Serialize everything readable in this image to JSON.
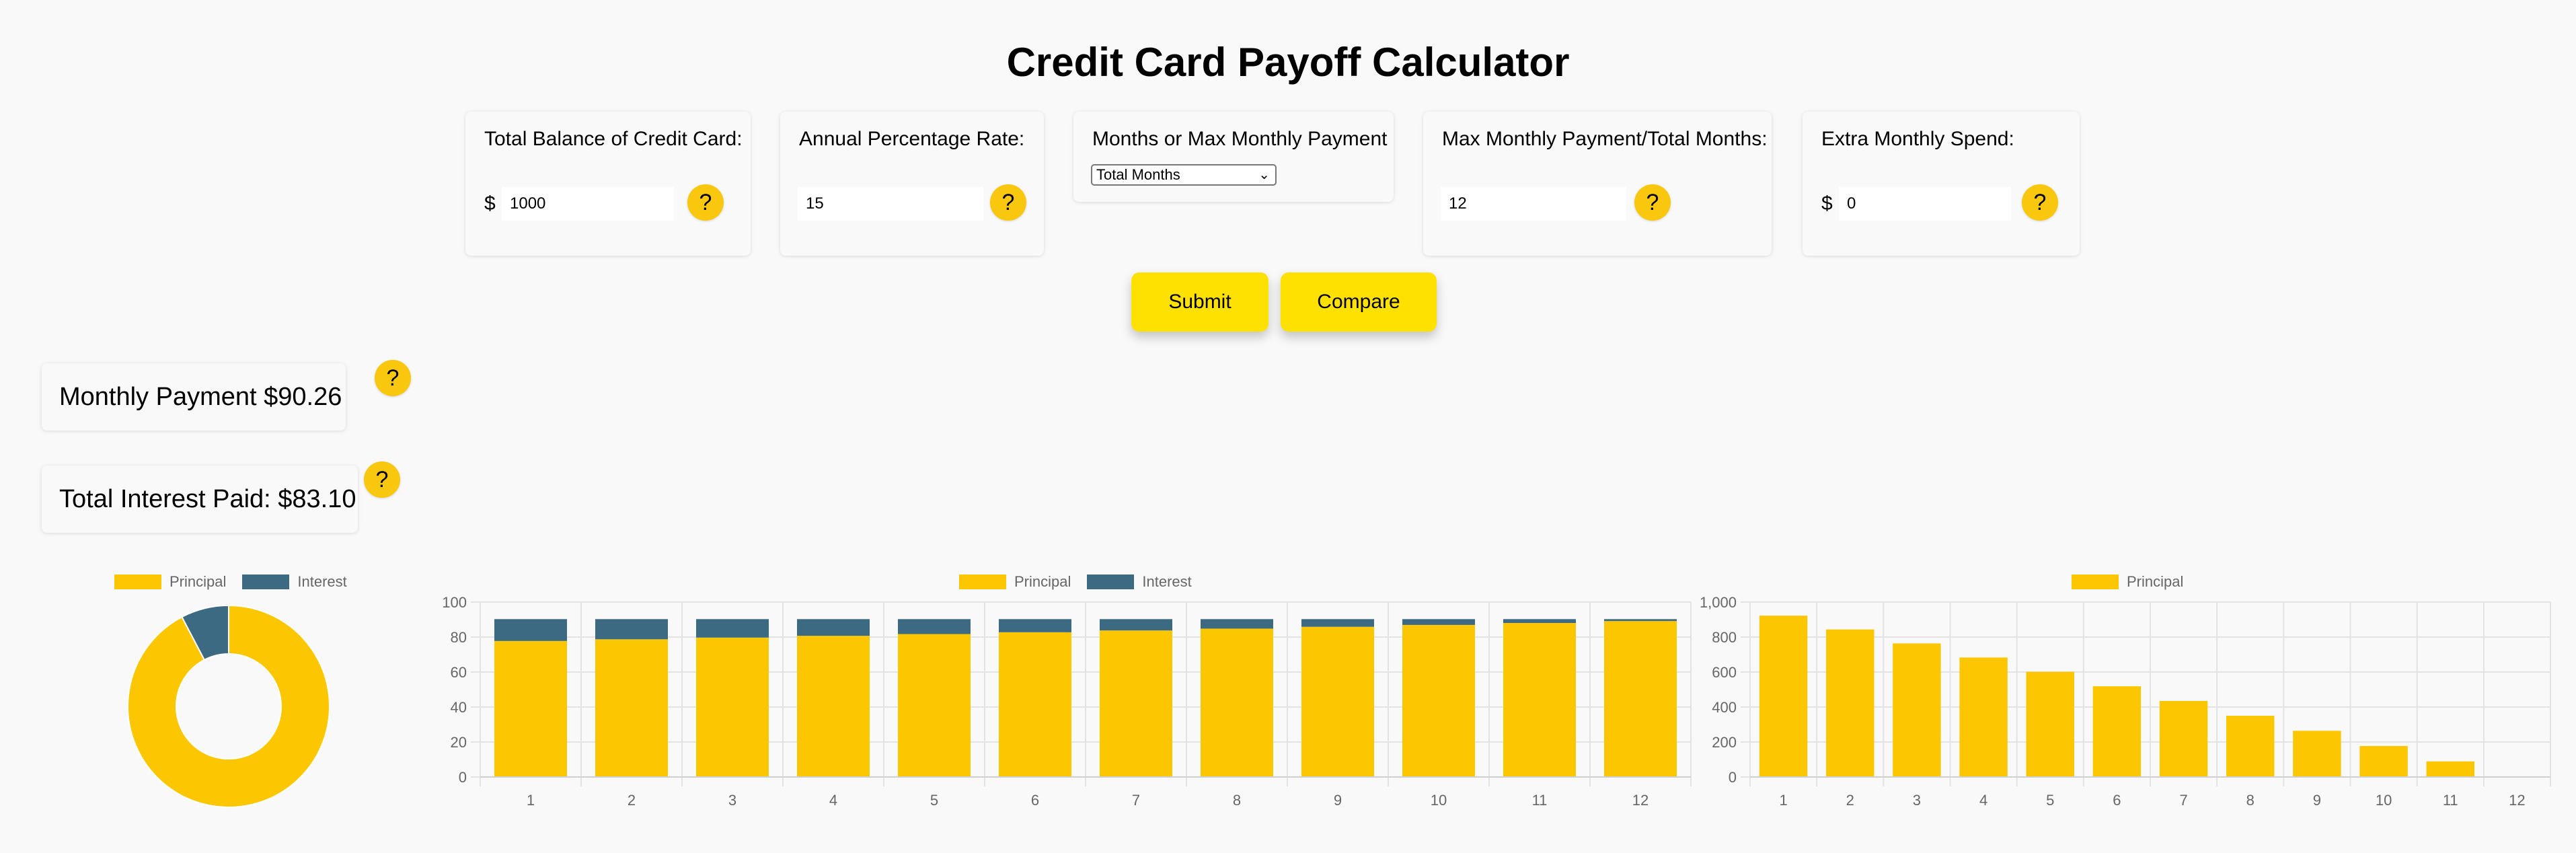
{
  "title": "Credit Card Payoff Calculator",
  "colors": {
    "principal": "#fcc600",
    "interest": "#3b6a82",
    "help": "#f9c80e",
    "button": "#ffe100"
  },
  "fields": {
    "balance": {
      "label": "Total Balance of Credit Card:",
      "prefix": "$",
      "value": "1000",
      "help": "?"
    },
    "apr": {
      "label": "Annual Percentage Rate:",
      "value": "15",
      "help": "?"
    },
    "mode": {
      "label": "Months or Max Monthly Payment",
      "selected": "Total Months"
    },
    "payment_months": {
      "label": "Max Monthly Payment/Total Months:",
      "value": "12",
      "help": "?"
    },
    "extra": {
      "label": "Extra Monthly Spend:",
      "prefix": "$",
      "value": "0",
      "help": "?"
    }
  },
  "buttons": {
    "submit": "Submit",
    "compare": "Compare"
  },
  "results": {
    "monthly_payment": "Monthly Payment $90.26",
    "total_interest": "Total Interest Paid: $83.10",
    "help": "?"
  },
  "chart_data": [
    {
      "type": "pie",
      "variant": "doughnut",
      "legend": [
        "Principal",
        "Interest"
      ],
      "labels": [
        "Principal",
        "Interest"
      ],
      "values": [
        1000,
        83.1
      ],
      "legend_position": "top"
    },
    {
      "type": "bar",
      "stacked": true,
      "categories": [
        "1",
        "2",
        "3",
        "4",
        "5",
        "6",
        "7",
        "8",
        "9",
        "10",
        "11",
        "12"
      ],
      "series": [
        {
          "name": "Principal",
          "values": [
            77.76,
            78.73,
            79.71,
            80.71,
            81.72,
            82.74,
            83.78,
            84.82,
            85.88,
            86.96,
            88.04,
            89.15
          ]
        },
        {
          "name": "Interest",
          "values": [
            12.5,
            11.53,
            10.55,
            9.55,
            8.54,
            7.52,
            6.48,
            5.44,
            4.38,
            3.3,
            2.22,
            1.11
          ]
        }
      ],
      "ylim": [
        0,
        100
      ],
      "yticks": [
        "0",
        "20",
        "40",
        "60",
        "80",
        "100"
      ],
      "legend_position": "top"
    },
    {
      "type": "bar",
      "categories": [
        "1",
        "2",
        "3",
        "4",
        "5",
        "6",
        "7",
        "8",
        "9",
        "10",
        "11",
        "12"
      ],
      "series": [
        {
          "name": "Principal",
          "values": [
            922.24,
            843.51,
            763.8,
            683.09,
            601.37,
            518.63,
            434.85,
            350.03,
            264.15,
            177.19,
            89.15,
            0
          ]
        }
      ],
      "ylim": [
        0,
        1000
      ],
      "yticks": [
        "0",
        "200",
        "400",
        "600",
        "800",
        "1,000"
      ],
      "legend_position": "top"
    }
  ]
}
